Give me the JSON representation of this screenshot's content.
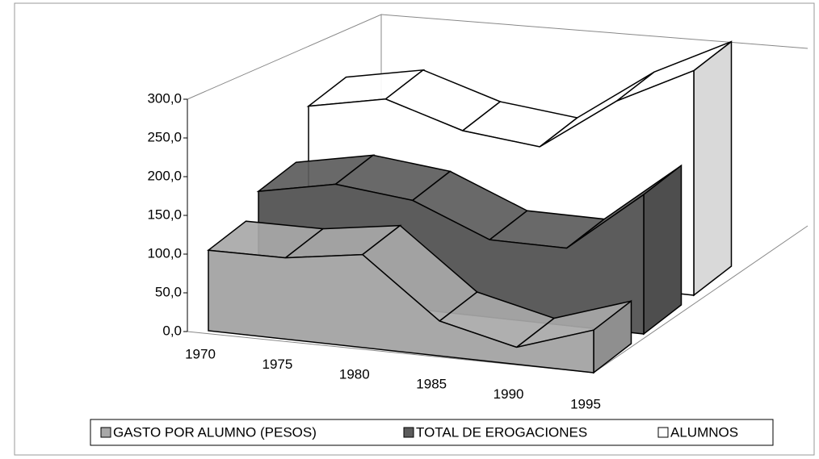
{
  "chart_data": {
    "type": "area3d",
    "categories": [
      "1970",
      "1975",
      "1980",
      "1985",
      "1990",
      "1995"
    ],
    "series": [
      {
        "name": "GASTO POR ALUMNO   (PESOS)",
        "color": "#a8a8a8",
        "values": [
          104,
          105,
          120,
          45,
          22,
          55
        ]
      },
      {
        "name": "TOTAL DE EROGACIONES",
        "color": "#5c5c5c",
        "values": [
          130,
          150,
          140,
          100,
          100,
          180
        ]
      },
      {
        "name": "ALUMNOS",
        "color": "#ffffff",
        "values": [
          190,
          210,
          180,
          170,
          240,
          290
        ]
      }
    ],
    "ylim": [
      0,
      300
    ],
    "yticks": [
      {
        "value": 0,
        "label": "0,0"
      },
      {
        "value": 50,
        "label": "50,0"
      },
      {
        "value": 100,
        "label": "100,0"
      },
      {
        "value": 150,
        "label": "150,0"
      },
      {
        "value": 200,
        "label": "200,0"
      },
      {
        "value": 250,
        "label": "250,0"
      },
      {
        "value": 300,
        "label": "300,0"
      }
    ]
  }
}
